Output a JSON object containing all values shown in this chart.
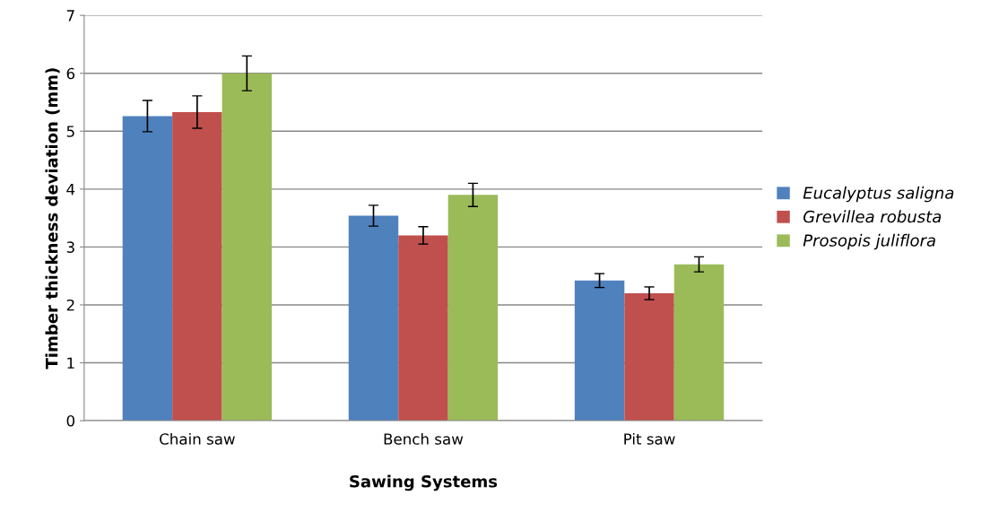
{
  "chart_data": {
    "type": "bar",
    "xlabel": "Sawing Systems",
    "ylabel": "Timber thickness deviation (mm)",
    "categories": [
      "Chain saw",
      "Bench saw",
      "Pit saw"
    ],
    "series": [
      {
        "name": "Eucalyptus saligna",
        "color": "#4f81bd",
        "values": [
          5.26,
          3.54,
          2.42
        ],
        "errors": [
          0.27,
          0.18,
          0.12
        ]
      },
      {
        "name": "Grevillea robusta",
        "color": "#c0504d",
        "values": [
          5.33,
          3.2,
          2.2
        ],
        "errors": [
          0.28,
          0.15,
          0.11
        ]
      },
      {
        "name": "Prosopis juliflora",
        "color": "#9bbb59",
        "values": [
          6.0,
          3.9,
          2.7
        ],
        "errors": [
          0.3,
          0.2,
          0.13
        ]
      }
    ],
    "ylim": [
      0,
      7
    ],
    "yticks": [
      0,
      1,
      2,
      3,
      4,
      5,
      6,
      7
    ],
    "grid": "y",
    "legend": "right"
  }
}
